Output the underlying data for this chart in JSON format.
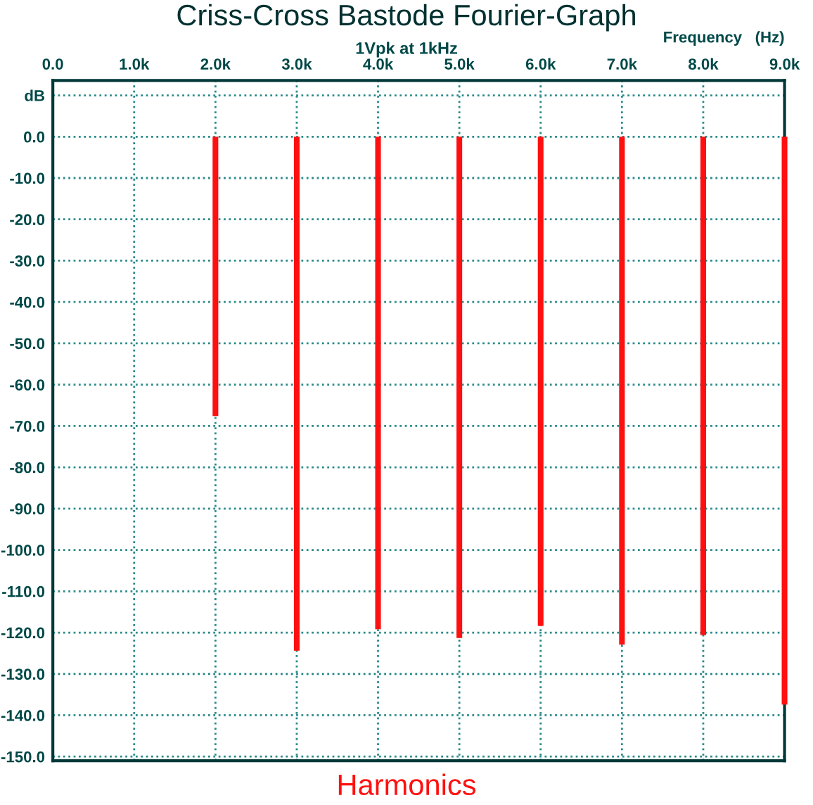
{
  "chart_data": {
    "type": "bar",
    "title": "Criss-Cross Bastode Fourier-Graph",
    "subtitle": "1Vpk at 1kHz",
    "xlabel": "Frequency   (Hz)",
    "x": [
      2000,
      3000,
      4000,
      5000,
      6000,
      7000,
      8000,
      9000
    ],
    "series": [
      {
        "color": "#ff1010",
        "values": [
          -67.6,
          -124.4,
          -119.2,
          -121.3,
          -118.4,
          -122.9,
          -120.6,
          -137.4
        ]
      }
    ],
    "xlim": [
      0,
      9000
    ],
    "xticks": [
      {
        "value": 0,
        "label": "0.0"
      },
      {
        "value": 1000,
        "label": "1.0k"
      },
      {
        "value": 2000,
        "label": "2.0k"
      },
      {
        "value": 3000,
        "label": "3.0k"
      },
      {
        "value": 4000,
        "label": "4.0k"
      },
      {
        "value": 5000,
        "label": "5.0k"
      },
      {
        "value": 6000,
        "label": "6.0k"
      },
      {
        "value": 7000,
        "label": "7.0k"
      },
      {
        "value": 8000,
        "label": "8.0k"
      },
      {
        "value": 9000,
        "label": "9.0k"
      }
    ],
    "ylim": [
      -151,
      13.6
    ],
    "yticks": [
      {
        "value": 10,
        "label": "dB"
      },
      {
        "value": 0,
        "label": "0.0"
      },
      {
        "value": -10,
        "label": "-10.0"
      },
      {
        "value": -20,
        "label": "-20.0"
      },
      {
        "value": -30,
        "label": "-30.0"
      },
      {
        "value": -40,
        "label": "-40.0"
      },
      {
        "value": -50,
        "label": "-50.0"
      },
      {
        "value": -60,
        "label": "-60.0"
      },
      {
        "value": -70,
        "label": "-70.0"
      },
      {
        "value": -80,
        "label": "-80.0"
      },
      {
        "value": -90,
        "label": "-90.0"
      },
      {
        "value": -100,
        "label": "-100.0"
      },
      {
        "value": -110,
        "label": "-110.0"
      },
      {
        "value": -120,
        "label": "-120.0"
      },
      {
        "value": -130,
        "label": "-130.0"
      },
      {
        "value": -140,
        "label": "-140.0"
      },
      {
        "value": -150,
        "label": "-150.0"
      }
    ],
    "grid": true,
    "annotations": [
      "Harmonics"
    ]
  }
}
